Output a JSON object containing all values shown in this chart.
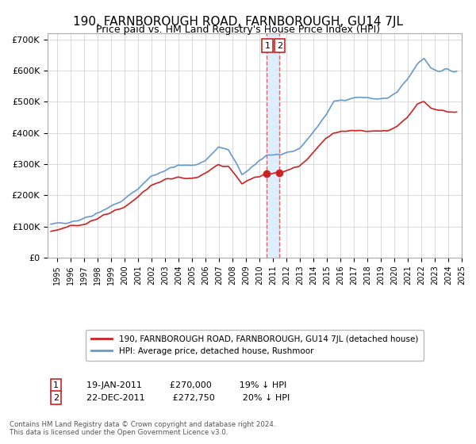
{
  "title": "190, FARNBOROUGH ROAD, FARNBOROUGH, GU14 7JL",
  "subtitle": "Price paid vs. HM Land Registry's House Price Index (HPI)",
  "title_fontsize": 11,
  "subtitle_fontsize": 9,
  "ylim": [
    0,
    720000
  ],
  "yticks": [
    0,
    100000,
    200000,
    300000,
    400000,
    500000,
    600000,
    700000
  ],
  "ytick_labels": [
    "£0",
    "£100K",
    "£200K",
    "£300K",
    "£400K",
    "£500K",
    "£600K",
    "£700K"
  ],
  "hpi_color": "#6699cc",
  "price_color": "#cc2222",
  "highlight_color": "#ddeeff",
  "dashed_line_color": "#dd6666",
  "marker_color": "#cc2222",
  "grid_color": "#cccccc",
  "background_color": "#ffffff",
  "legend_box_color": "#ffffff",
  "annotation1": {
    "label": "1",
    "date_str": "19-JAN-2011",
    "price": "£270,000",
    "pct": "19% ↓ HPI"
  },
  "annotation2": {
    "label": "2",
    "date_str": "22-DEC-2011",
    "price": "£272,750",
    "pct": "20% ↓ HPI"
  },
  "footnote": "Contains HM Land Registry data © Crown copyright and database right 2024.\nThis data is licensed under the Open Government Licence v3.0.",
  "legend1": "190, FARNBOROUGH ROAD, FARNBOROUGH, GU14 7JL (detached house)",
  "legend2": "HPI: Average price, detached house, Rushmoor"
}
